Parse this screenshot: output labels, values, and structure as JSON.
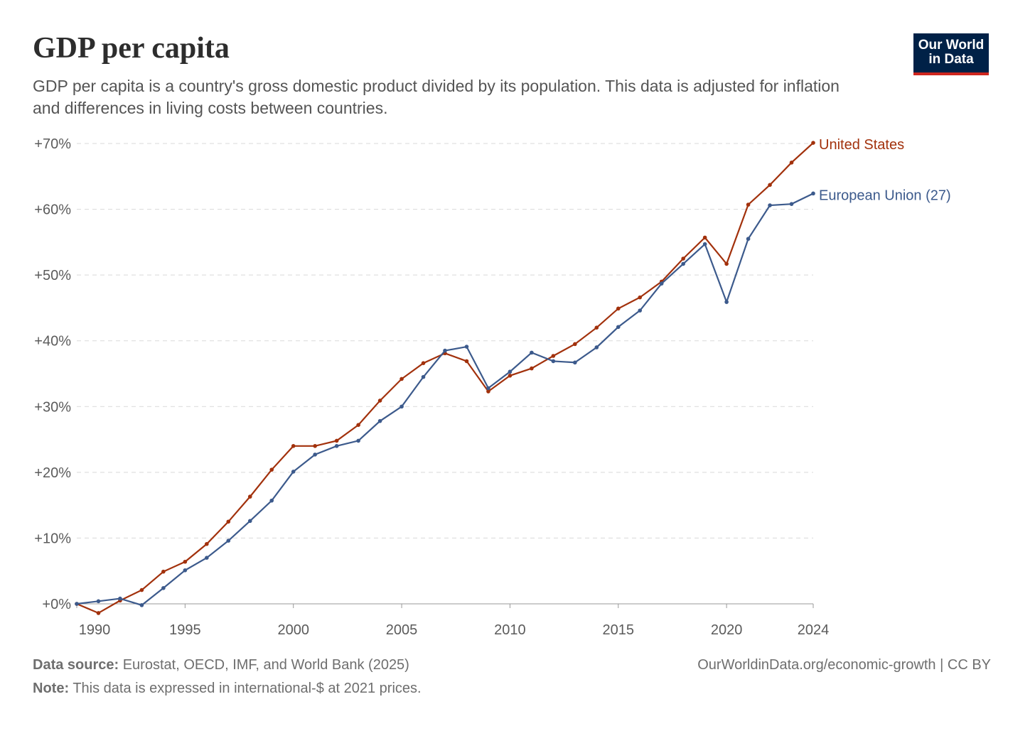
{
  "header": {
    "title": "GDP per capita",
    "subtitle": "GDP per capita is a country's gross domestic product divided by its population. This data is adjusted for inflation and differences in living costs between countries.",
    "logo": "Our World in Data"
  },
  "footer": {
    "source_label": "Data source:",
    "source": "Eurostat, OECD, IMF, and World Bank (2025)",
    "note_label": "Note:",
    "note": "This data is expressed in international-$ at 2021 prices.",
    "url": "OurWorldinData.org/economic-growth",
    "license": "| CC BY"
  },
  "chart_data": {
    "type": "line",
    "title": "GDP per capita",
    "xlabel": "",
    "ylabel": "",
    "xlim": [
      1990,
      2024
    ],
    "ylim": [
      0,
      70
    ],
    "x_ticks": [
      1990,
      1995,
      2000,
      2005,
      2010,
      2015,
      2020,
      2024
    ],
    "y_ticks": [
      0,
      10,
      20,
      30,
      40,
      50,
      60,
      70
    ],
    "y_tick_labels": [
      "+0%",
      "+10%",
      "+20%",
      "+30%",
      "+40%",
      "+50%",
      "+60%",
      "+70%"
    ],
    "grid": "horizontal dashed",
    "x": [
      1990,
      1991,
      1992,
      1993,
      1994,
      1995,
      1996,
      1997,
      1998,
      1999,
      2000,
      2001,
      2002,
      2003,
      2004,
      2005,
      2006,
      2007,
      2008,
      2009,
      2010,
      2011,
      2012,
      2013,
      2014,
      2015,
      2016,
      2017,
      2018,
      2019,
      2020,
      2021,
      2022,
      2023,
      2024
    ],
    "series": [
      {
        "name": "United States",
        "color": "#a2310c",
        "values": [
          0,
          -1.4,
          0.5,
          2.1,
          4.9,
          6.4,
          9.1,
          12.5,
          16.3,
          20.4,
          24.0,
          24.0,
          24.8,
          27.2,
          30.9,
          34.2,
          36.6,
          38.1,
          36.9,
          32.3,
          34.7,
          35.8,
          37.7,
          39.5,
          42.0,
          44.9,
          46.6,
          49.0,
          52.5,
          55.7,
          51.7,
          60.7,
          63.7,
          67.1,
          70.1
        ]
      },
      {
        "name": "European Union (27)",
        "color": "#3c5a8c",
        "values": [
          0,
          0.4,
          0.8,
          -0.2,
          2.4,
          5.1,
          7.0,
          9.6,
          12.6,
          15.7,
          20.1,
          22.7,
          24.0,
          24.8,
          27.8,
          30.0,
          34.5,
          38.5,
          39.1,
          32.8,
          35.3,
          38.2,
          36.9,
          36.7,
          39.0,
          42.1,
          44.6,
          48.7,
          51.7,
          54.7,
          45.9,
          55.5,
          60.6,
          60.8,
          62.4
        ]
      }
    ]
  }
}
